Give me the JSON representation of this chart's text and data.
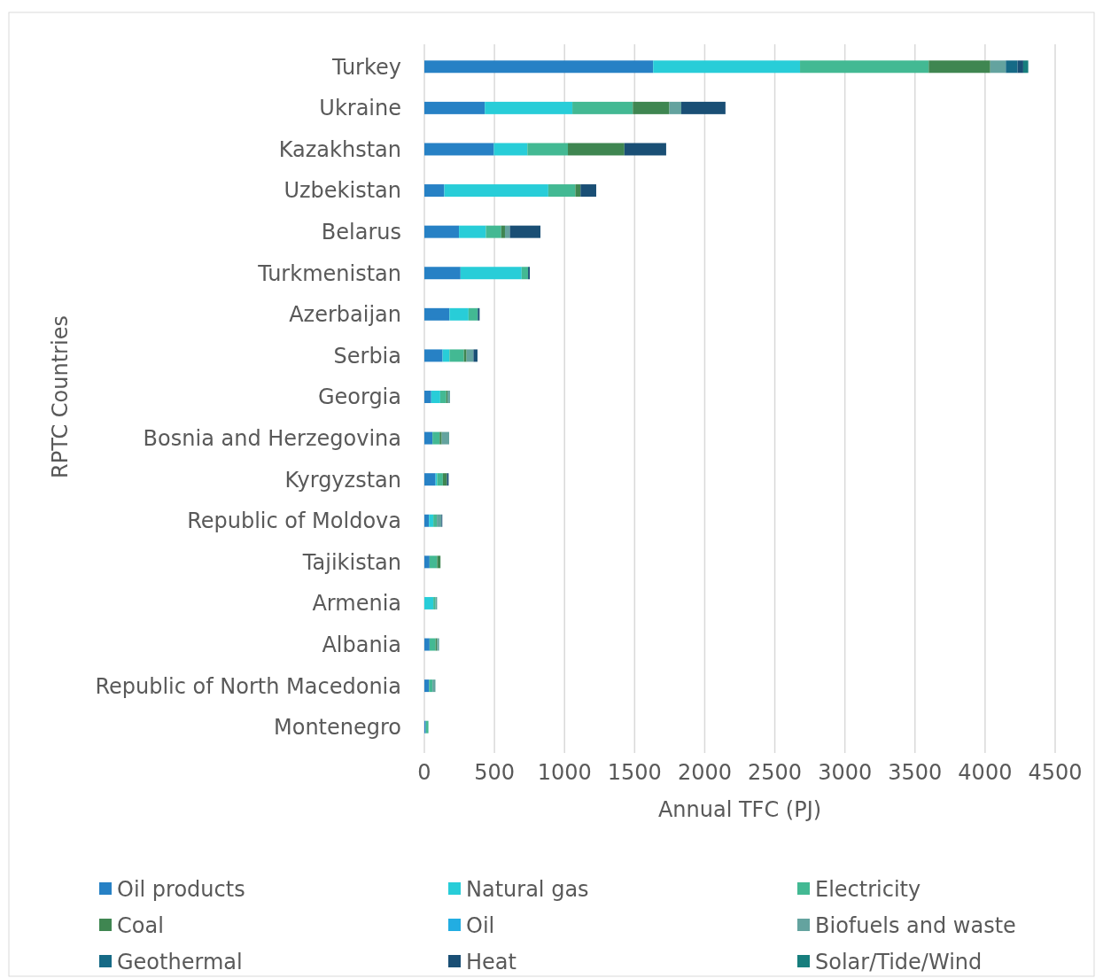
{
  "chart_data": {
    "type": "bar",
    "orientation": "horizontal",
    "stacked": true,
    "xlabel": "Annual TFC (PJ)",
    "ylabel": "RPTC Countries",
    "categories": [
      "Turkey",
      "Ukraine",
      "Kazakhstan",
      "Uzbekistan",
      "Belarus",
      "Turkmenistan",
      "Azerbaijan",
      "Serbia",
      "Georgia",
      "Bosnia and Herzegovina",
      "Kyrgyzstan",
      "Republic of Moldova",
      "Tajikistan",
      "Armenia",
      "Albania",
      "Republic of North Macedonia",
      "Montenegro"
    ],
    "series": [
      {
        "name": "Oil products",
        "color": "#2781c5",
        "values": [
          1632,
          431,
          496,
          142,
          247,
          258,
          179,
          130,
          49,
          58,
          80,
          33,
          37,
          0,
          37,
          33,
          10
        ]
      },
      {
        "name": "Natural gas",
        "color": "#28cdd8",
        "values": [
          1048,
          625,
          239,
          742,
          192,
          436,
          136,
          49,
          64,
          0,
          11,
          31,
          0,
          64,
          0,
          0,
          0
        ]
      },
      {
        "name": "Electricity",
        "color": "#43b993",
        "values": [
          918,
          431,
          289,
          193,
          109,
          46,
          66,
          103,
          43,
          51,
          41,
          25,
          54,
          16,
          43,
          25,
          19
        ]
      },
      {
        "name": "Coal",
        "color": "#3f8651",
        "values": [
          439,
          261,
          403,
          37,
          27,
          0,
          0,
          19,
          9,
          15,
          29,
          0,
          24,
          0,
          11,
          0,
          0
        ]
      },
      {
        "name": "Oil",
        "color": "#22ade2",
        "values": [
          0,
          0,
          0,
          0,
          0,
          0,
          0,
          0,
          0,
          0,
          0,
          0,
          0,
          0,
          0,
          0,
          0
        ]
      },
      {
        "name": "Biofuels and waste",
        "color": "#64a39f",
        "values": [
          111,
          85,
          0,
          0,
          35,
          0,
          0,
          49,
          18,
          53,
          0,
          33,
          0,
          11,
          14,
          21,
          0
        ]
      },
      {
        "name": "Geothermal",
        "color": "#166a86",
        "values": [
          84,
          0,
          0,
          0,
          0,
          0,
          0,
          0,
          0,
          0,
          0,
          0,
          0,
          0,
          0,
          0,
          0
        ]
      },
      {
        "name": "Heat",
        "color": "#1a4f75",
        "values": [
          40,
          315,
          298,
          112,
          218,
          12,
          13,
          29,
          0,
          0,
          12,
          6,
          0,
          0,
          0,
          0,
          0
        ]
      },
      {
        "name": "Solar/Tide/Wind",
        "color": "#177e7d",
        "values": [
          36,
          0,
          0,
          0,
          0,
          0,
          0,
          0,
          0,
          0,
          0,
          0,
          0,
          0,
          0,
          0,
          0
        ]
      }
    ],
    "xlim": [
      0,
      4500
    ],
    "xticks": [
      0,
      500,
      1000,
      1500,
      2000,
      2500,
      3000,
      3500,
      4000,
      4500
    ],
    "grid": "x",
    "legend": "bottom"
  }
}
